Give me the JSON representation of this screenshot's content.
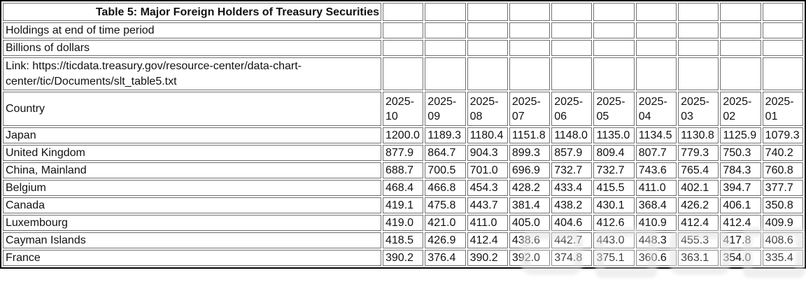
{
  "table": {
    "title": "Table 5: Major Foreign Holders of Treasury Securities",
    "note_line1": "Holdings at end of time period",
    "note_line2": "Billions of dollars",
    "link_line": "Link: https://ticdata.treasury.gov/resource-center/data-chart-center/tic/Documents/slt_table5.txt",
    "country_header": "Country",
    "periods": [
      "2025-10",
      "2025-09",
      "2025-08",
      "2025-07",
      "2025-06",
      "2025-05",
      "2025-04",
      "2025-03",
      "2025-02",
      "2025-01"
    ],
    "rows": [
      {
        "country": "Japan",
        "values": [
          "1200.0",
          "1189.3",
          "1180.4",
          "1151.8",
          "1148.0",
          "1135.0",
          "1134.5",
          "1130.8",
          "1125.9",
          "1079.3"
        ]
      },
      {
        "country": "United Kingdom",
        "values": [
          "877.9",
          "864.7",
          "904.3",
          "899.3",
          "857.9",
          "809.4",
          "807.7",
          "779.3",
          "750.3",
          "740.2"
        ]
      },
      {
        "country": "China, Mainland",
        "values": [
          "688.7",
          "700.5",
          "701.0",
          "696.9",
          "732.7",
          "732.7",
          "743.6",
          "765.4",
          "784.3",
          "760.8"
        ]
      },
      {
        "country": "Belgium",
        "values": [
          "468.4",
          "466.8",
          "454.3",
          "428.2",
          "433.4",
          "415.5",
          "411.0",
          "402.1",
          "394.7",
          "377.7"
        ]
      },
      {
        "country": "Canada",
        "values": [
          "419.1",
          "475.8",
          "443.7",
          "381.4",
          "438.2",
          "430.1",
          "368.4",
          "426.2",
          "406.1",
          "350.8"
        ]
      },
      {
        "country": "Luxembourg",
        "values": [
          "419.0",
          "421.0",
          "411.0",
          "405.0",
          "404.6",
          "412.6",
          "410.9",
          "412.4",
          "412.4",
          "409.9"
        ]
      },
      {
        "country": "Cayman Islands",
        "values": [
          "418.5",
          "426.9",
          "412.4",
          "438.6",
          "442.7",
          "443.0",
          "448.3",
          "455.3",
          "417.8",
          "408.6"
        ]
      },
      {
        "country": "France",
        "values": [
          "390.2",
          "376.4",
          "390.2",
          "392.0",
          "374.8",
          "375.1",
          "360.6",
          "363.1",
          "354.0",
          "335.4"
        ]
      }
    ]
  },
  "colors": {
    "background": "#ffffff",
    "text": "#111111",
    "outer_border": "#000000",
    "cell_border": "#6f6f6f",
    "watermark": "#e3e3e3"
  }
}
